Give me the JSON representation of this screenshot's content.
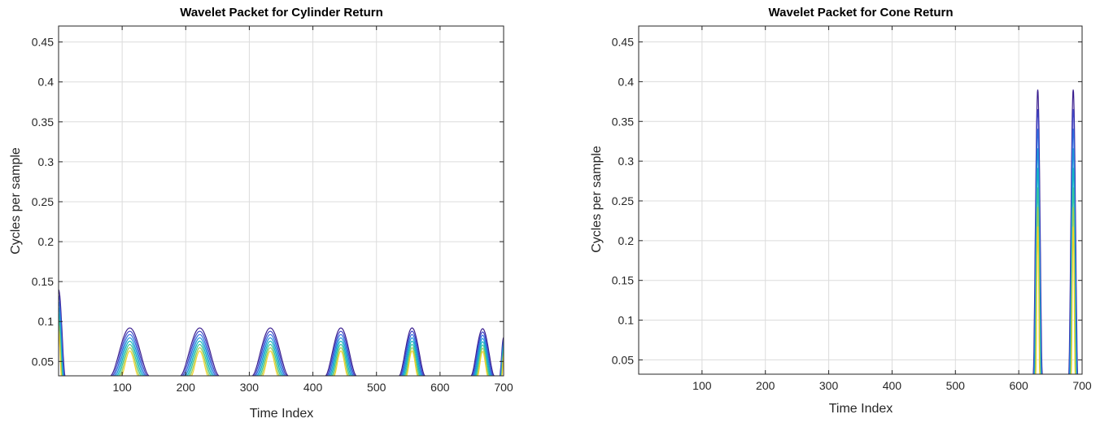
{
  "chart_data": [
    {
      "type": "contour",
      "title": "Wavelet Packet for Cylinder Return",
      "xlabel": "Time Index",
      "ylabel": "Cycles per sample",
      "xlim": [
        0,
        700
      ],
      "ylim": [
        0.032,
        0.47
      ],
      "xticks": [
        100,
        200,
        300,
        400,
        500,
        600,
        700
      ],
      "yticks": [
        0.05,
        0.1,
        0.15,
        0.2,
        0.25,
        0.3,
        0.35,
        0.4,
        0.45
      ],
      "grid": true,
      "colormap": [
        "#3b1f8f",
        "#3f46c6",
        "#2f6fe0",
        "#1f96d8",
        "#15b6c2",
        "#3cc59a",
        "#9ccc56",
        "#f1d22a"
      ],
      "peaks": [
        {
          "x": 0,
          "width": 10,
          "height": 0.14
        },
        {
          "x": 112,
          "width": 30,
          "height": 0.092
        },
        {
          "x": 222,
          "width": 30,
          "height": 0.092
        },
        {
          "x": 333,
          "width": 28,
          "height": 0.092
        },
        {
          "x": 444,
          "width": 24,
          "height": 0.092
        },
        {
          "x": 556,
          "width": 20,
          "height": 0.092
        },
        {
          "x": 667,
          "width": 18,
          "height": 0.091
        },
        {
          "x": 700,
          "width": 6,
          "height": 0.08
        }
      ]
    },
    {
      "type": "contour",
      "title": "Wavelet Packet for Cone Return",
      "xlabel": "Time Index",
      "ylabel": "Cycles per sample",
      "xlim": [
        0,
        700
      ],
      "ylim": [
        0.032,
        0.47
      ],
      "xticks": [
        100,
        200,
        300,
        400,
        500,
        600,
        700
      ],
      "yticks": [
        0.05,
        0.1,
        0.15,
        0.2,
        0.25,
        0.3,
        0.35,
        0.4,
        0.45
      ],
      "grid": true,
      "colormap": [
        "#3b1f8f",
        "#3f46c6",
        "#2f6fe0",
        "#1f96d8",
        "#15b6c2",
        "#3cc59a",
        "#9ccc56",
        "#f1d22a"
      ],
      "peaks": [
        {
          "x": 630,
          "width": 7,
          "height": 0.39
        },
        {
          "x": 686,
          "width": 7,
          "height": 0.39
        }
      ]
    }
  ]
}
